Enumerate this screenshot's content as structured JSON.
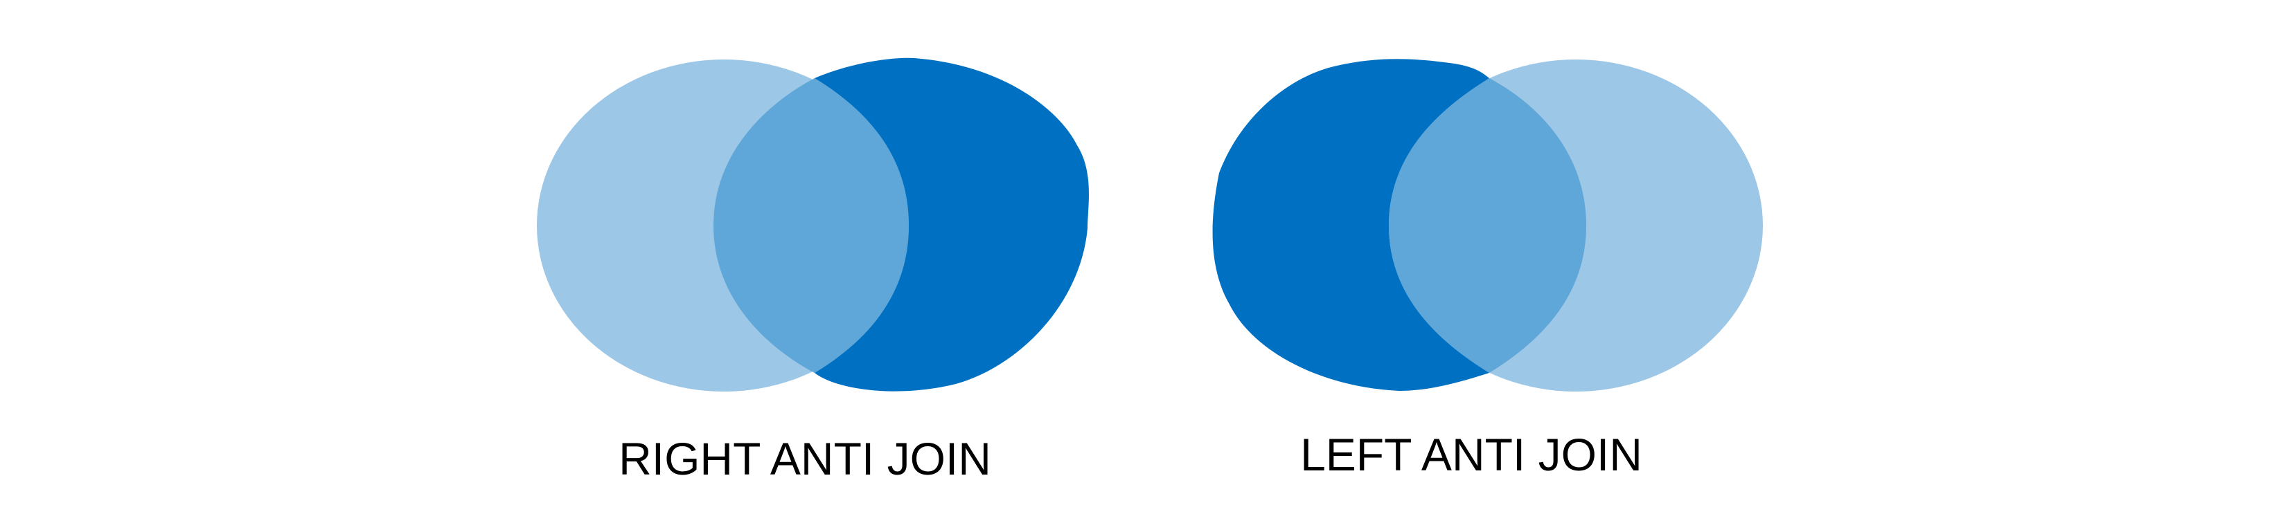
{
  "diagrams": [
    {
      "id": "right-anti-join",
      "label": "RIGHT ANTI JOIN",
      "highlighted_set": "right"
    },
    {
      "id": "left-anti-join",
      "label": "LEFT ANTI JOIN",
      "highlighted_set": "left"
    }
  ],
  "colors": {
    "light_set": "#9DC7E7",
    "intersection": "#60A7D9",
    "highlight": "#0071C2",
    "label_text": "#000000",
    "background": "#FFFFFF"
  }
}
